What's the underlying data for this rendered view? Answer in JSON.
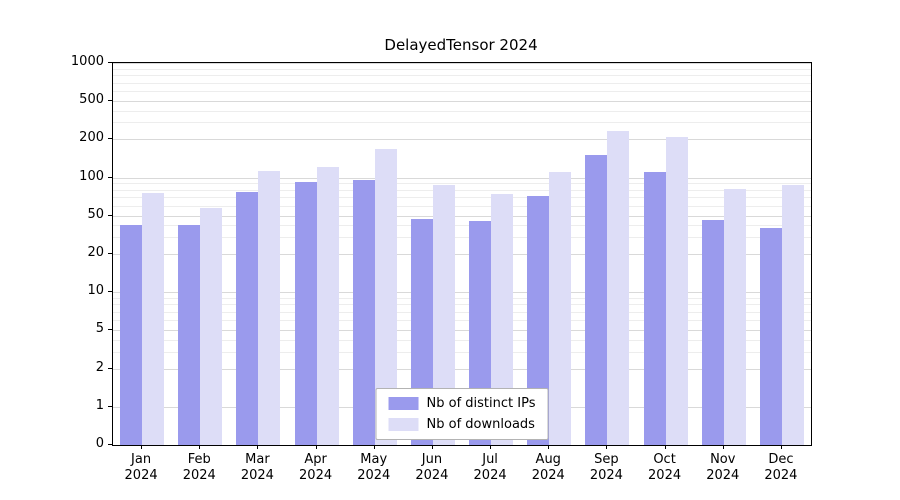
{
  "chart_data": {
    "type": "bar",
    "title": "DelayedTensor 2024",
    "categories": [
      "Jan",
      "Feb",
      "Mar",
      "Apr",
      "May",
      "Jun",
      "Jul",
      "Aug",
      "Sep",
      "Oct",
      "Nov",
      "Dec"
    ],
    "year": "2024",
    "series": [
      {
        "name": "Nb of distinct IPs",
        "color": "#9a9aed",
        "values": [
          40,
          40,
          77,
          92,
          96,
          46,
          44,
          72,
          152,
          110,
          45,
          37
        ]
      },
      {
        "name": "Nb of downloads",
        "color": "#ddddf7",
        "values": [
          76,
          58,
          113,
          122,
          168,
          88,
          74,
          110,
          245,
          212,
          82,
          88
        ]
      }
    ],
    "ytick_values": [
      0,
      1,
      2,
      5,
      10,
      20,
      50,
      100,
      200,
      500,
      1000
    ],
    "ytick_labels": [
      "0",
      "1",
      "2",
      "5",
      "10",
      "20",
      "50",
      "100",
      "200",
      "500",
      "1000"
    ],
    "minor_grid_values": [
      3,
      4,
      6,
      7,
      8,
      9,
      30,
      40,
      60,
      70,
      80,
      90,
      300,
      400,
      600,
      700,
      800,
      900
    ],
    "xlabel": "",
    "ylabel": "",
    "grid": true,
    "scale": "log-like with equally spaced labeled ticks",
    "legend_position": "bottom-center"
  }
}
